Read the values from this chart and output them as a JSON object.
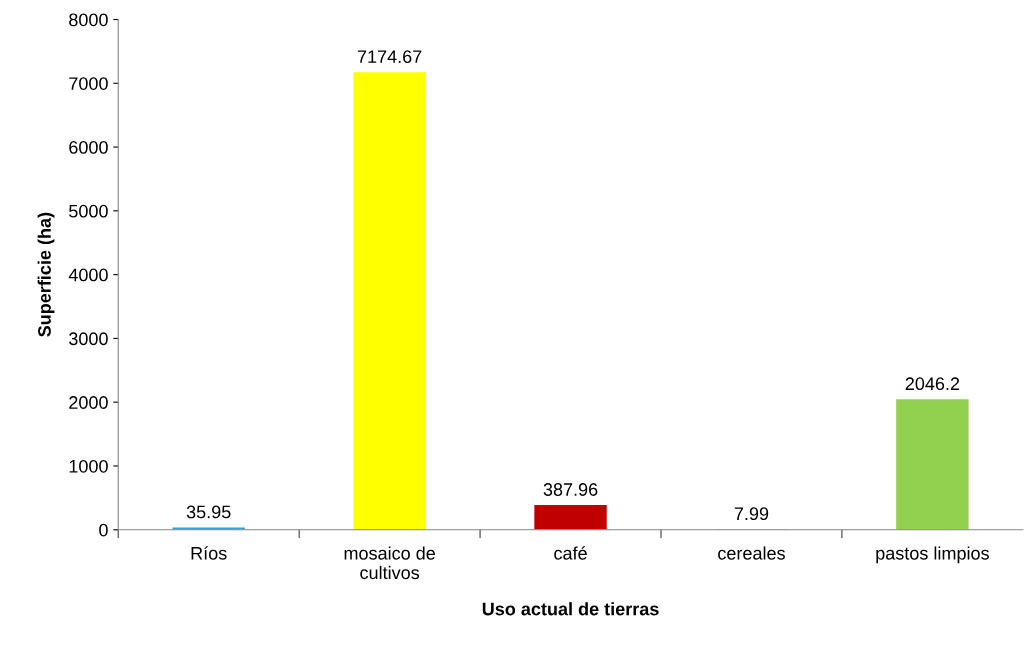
{
  "chart_data": {
    "type": "bar",
    "xlabel": "Uso actual de tierras",
    "ylabel": "Superficie (ha)",
    "categories": [
      "Ríos",
      "mosaico de\ncultivos",
      "café",
      "cereales",
      "pastos limpios"
    ],
    "values": [
      35.95,
      7174.67,
      387.96,
      7.99,
      2046.2
    ],
    "colors": [
      "#2ea3dc",
      "#ffff00",
      "#c00000",
      "#e69a9a",
      "#92d050"
    ],
    "ylim": [
      0,
      8000
    ],
    "yticks": [
      0,
      1000,
      2000,
      3000,
      4000,
      5000,
      6000,
      7000,
      8000
    ],
    "data_labels": true,
    "grid": false,
    "legend": false
  }
}
